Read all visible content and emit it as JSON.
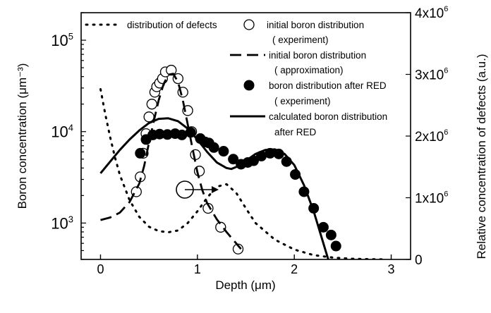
{
  "chart_data": {
    "type": "line",
    "xlabel": "Depth (μm)",
    "ylabel_left": "Boron concentration (μm⁻³)",
    "ylabel_right": "Relative concentration of defects (a.u.)",
    "xlim": [
      -0.2,
      3.2
    ],
    "ylim_left": [
      400,
      200000
    ],
    "yscale_left": "log",
    "ylim_right": [
      0,
      4000000
    ],
    "x_ticks": [
      {
        "value": 0,
        "label": "0"
      },
      {
        "value": 1,
        "label": "1"
      },
      {
        "value": 2,
        "label": "2"
      },
      {
        "value": 3,
        "label": "3"
      }
    ],
    "y_ticks_left": [
      {
        "value": 1000,
        "base": "10",
        "exp": "3"
      },
      {
        "value": 10000,
        "base": "10",
        "exp": "4"
      },
      {
        "value": 100000,
        "base": "10",
        "exp": "5"
      }
    ],
    "y_ticks_right": [
      {
        "value": 0,
        "base": "0",
        "exp": ""
      },
      {
        "value": 1000000,
        "base": "1x10",
        "exp": "6"
      },
      {
        "value": 2000000,
        "base": "2x10",
        "exp": "6"
      },
      {
        "value": 3000000,
        "base": "3x10",
        "exp": "6"
      },
      {
        "value": 4000000,
        "base": "4x10",
        "exp": "6"
      }
    ],
    "legend_position": "top",
    "legend": [
      {
        "text": "distribution of defects",
        "style": "dotted"
      },
      {
        "text": "initial boron distribution",
        "sub": "( experiment)",
        "style": "open-circle"
      },
      {
        "text": "initial boron distribution",
        "sub": "( approximation)",
        "style": "dashed"
      },
      {
        "text": "boron distribution after RED",
        "sub": "( experiment)",
        "style": "filled-circle"
      },
      {
        "text": "calculated boron distribution",
        "sub": "after RED",
        "style": "solid"
      }
    ],
    "series": [
      {
        "name": "distribution of defects",
        "axis": "right",
        "style": "dotted",
        "x": [
          0,
          0.05,
          0.1,
          0.15,
          0.2,
          0.3,
          0.4,
          0.5,
          0.6,
          0.7,
          0.8,
          0.9,
          1.0,
          1.1,
          1.2,
          1.3,
          1.4,
          1.5,
          1.6,
          1.8,
          2.0,
          2.2,
          2.4,
          2.6,
          2.8,
          2.95
        ],
        "values": [
          2760000,
          2350000,
          1980000,
          1650000,
          1370000,
          960000,
          690000,
          530000,
          460000,
          440000,
          470000,
          590000,
          780000,
          1000000,
          1180000,
          1220000,
          1080000,
          830000,
          590000,
          320000,
          160000,
          70000,
          30000,
          10000,
          3000,
          0
        ]
      },
      {
        "name": "initial boron distribution (experiment)",
        "axis": "left",
        "style": "open-circle",
        "x": [
          0.37,
          0.41,
          0.44,
          0.47,
          0.5,
          0.53,
          0.56,
          0.58,
          0.61,
          0.64,
          0.67,
          0.73,
          0.8,
          0.85,
          0.9,
          0.94,
          0.98,
          1.02,
          1.11,
          1.24,
          1.42
        ],
        "values": [
          2200,
          3200,
          5800,
          9500,
          14500,
          20000,
          27000,
          31000,
          34000,
          38000,
          45000,
          47000,
          38000,
          27000,
          17000,
          10000,
          5600,
          3700,
          1450,
          900,
          520
        ]
      },
      {
        "name": "initial boron distribution (approximation)",
        "axis": "left",
        "style": "dashed",
        "x": [
          0,
          0.1,
          0.2,
          0.3,
          0.4,
          0.45,
          0.5,
          0.55,
          0.6,
          0.65,
          0.7,
          0.75,
          0.8,
          0.85,
          0.9,
          0.95,
          1.0,
          1.05,
          1.1,
          1.2,
          1.3,
          1.4,
          1.45
        ],
        "values": [
          1080,
          1150,
          1300,
          1700,
          2700,
          4200,
          7500,
          13000,
          22000,
          33000,
          42000,
          43000,
          35000,
          22000,
          12000,
          6500,
          3600,
          2300,
          1650,
          1100,
          800,
          600,
          520
        ]
      },
      {
        "name": "boron distribution after RED (experiment)",
        "axis": "left",
        "style": "filled-circle",
        "x": [
          0.41,
          0.47,
          0.54,
          0.61,
          0.69,
          0.77,
          0.84,
          0.93,
          1.03,
          1.08,
          1.12,
          1.17,
          1.27,
          1.37,
          1.45,
          1.52,
          1.58,
          1.66,
          1.75,
          1.84,
          1.92,
          2.01,
          2.1,
          2.2,
          2.3,
          2.38,
          2.43
        ],
        "values": [
          5800,
          8200,
          9200,
          9400,
          9300,
          9500,
          9200,
          9800,
          8400,
          7700,
          7500,
          6700,
          6100,
          5000,
          4400,
          4600,
          4800,
          5400,
          5800,
          5700,
          4700,
          3400,
          2200,
          1450,
          900,
          740,
          560
        ]
      },
      {
        "name": "calculated boron distribution after RED",
        "axis": "left",
        "style": "solid",
        "x": [
          0,
          0.1,
          0.2,
          0.3,
          0.4,
          0.5,
          0.6,
          0.7,
          0.8,
          0.9,
          1.0,
          1.1,
          1.2,
          1.3,
          1.35,
          1.4,
          1.5,
          1.6,
          1.7,
          1.8,
          1.9,
          2.0,
          2.1,
          2.2,
          2.3,
          2.35
        ],
        "values": [
          3500,
          4700,
          6300,
          8200,
          10300,
          12400,
          13800,
          14000,
          13000,
          10800,
          8200,
          6000,
          4600,
          4000,
          3900,
          4100,
          4800,
          5700,
          6300,
          6400,
          5700,
          4300,
          2600,
          1350,
          600,
          400
        ]
      }
    ]
  }
}
